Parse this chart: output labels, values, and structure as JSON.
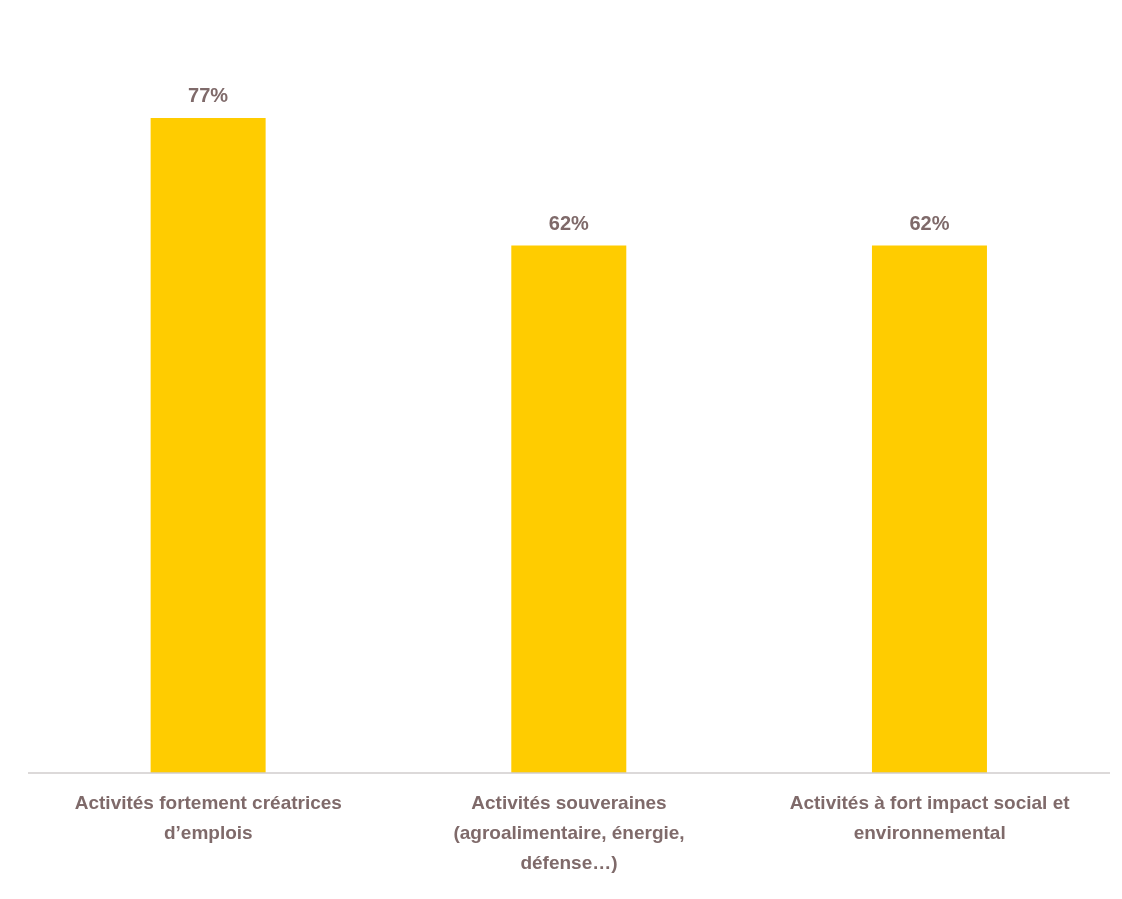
{
  "chart_data": {
    "type": "bar",
    "categories": [
      "Activités fortement créatrices d’emplois",
      "Activités souveraines (agroalimentaire, énergie, défense…)",
      "Activités à fort impact social et environnemental"
    ],
    "values": [
      77,
      62,
      62
    ],
    "value_labels": [
      "77%",
      "62%",
      "62%"
    ],
    "color": "#ffcc00",
    "grid": false,
    "legend": false
  }
}
